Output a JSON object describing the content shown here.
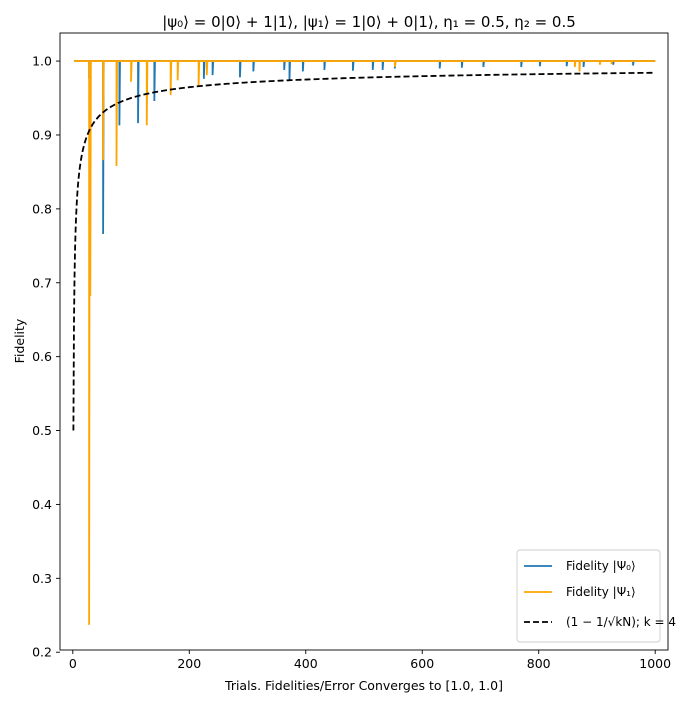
{
  "chart_data": {
    "type": "line",
    "title": "|ψ₀⟩ = 0|0⟩ + 1|1⟩, |ψ₁⟩ = 1|0⟩ + 0|1⟩, η₁ = 0.5, η₂ = 0.5",
    "xlabel": "Trials. Fidelities/Error Converges to [1.0, 1.0]",
    "ylabel": "Fidelity",
    "xlim": [
      -22,
      1022
    ],
    "ylim": [
      0.203,
      1.038
    ],
    "xticks": [
      0,
      200,
      400,
      600,
      800,
      1000
    ],
    "yticks": [
      0.2,
      0.3,
      0.4,
      0.5,
      0.6,
      0.7,
      0.8,
      0.9,
      1.0
    ],
    "xtick_labels": [
      "0",
      "200",
      "400",
      "600",
      "800",
      "1000"
    ],
    "ytick_labels": [
      "0.2",
      "0.3",
      "0.4",
      "0.5",
      "0.6",
      "0.7",
      "0.8",
      "0.9",
      "1.0"
    ],
    "legend_position": "lower-right",
    "series": [
      {
        "name": "Fidelity |Ψ₀⟩",
        "color": "#1f77b4",
        "baseline": 1.0,
        "x_range": [
          2,
          1000
        ],
        "dips": [
          {
            "x": 28,
            "y": 0.976
          },
          {
            "x": 52,
            "y": 0.766
          },
          {
            "x": 80,
            "y": 0.913
          },
          {
            "x": 112,
            "y": 0.916
          },
          {
            "x": 140,
            "y": 0.946
          },
          {
            "x": 225,
            "y": 0.976
          },
          {
            "x": 240,
            "y": 0.981
          },
          {
            "x": 287,
            "y": 0.978
          },
          {
            "x": 310,
            "y": 0.986
          },
          {
            "x": 363,
            "y": 0.988
          },
          {
            "x": 372,
            "y": 0.974
          },
          {
            "x": 395,
            "y": 0.986
          },
          {
            "x": 432,
            "y": 0.988
          },
          {
            "x": 481,
            "y": 0.987
          },
          {
            "x": 515,
            "y": 0.988
          },
          {
            "x": 532,
            "y": 0.988
          },
          {
            "x": 553,
            "y": 0.99
          },
          {
            "x": 630,
            "y": 0.99
          },
          {
            "x": 668,
            "y": 0.991
          },
          {
            "x": 705,
            "y": 0.992
          },
          {
            "x": 770,
            "y": 0.992
          },
          {
            "x": 802,
            "y": 0.993
          },
          {
            "x": 848,
            "y": 0.993
          },
          {
            "x": 877,
            "y": 0.992
          },
          {
            "x": 928,
            "y": 0.995
          },
          {
            "x": 962,
            "y": 0.994
          }
        ]
      },
      {
        "name": "Fidelity |Ψ₁⟩",
        "color": "#ffa500",
        "baseline": 1.0,
        "x_range": [
          2,
          1000
        ],
        "dips": [
          {
            "x": 28,
            "y": 0.237
          },
          {
            "x": 30,
            "y": 0.682
          },
          {
            "x": 52,
            "y": 0.866
          },
          {
            "x": 75,
            "y": 0.858
          },
          {
            "x": 100,
            "y": 0.972
          },
          {
            "x": 127,
            "y": 0.913
          },
          {
            "x": 168,
            "y": 0.954
          },
          {
            "x": 180,
            "y": 0.974
          },
          {
            "x": 216,
            "y": 0.967
          },
          {
            "x": 230,
            "y": 0.981
          },
          {
            "x": 553,
            "y": 0.992
          },
          {
            "x": 862,
            "y": 0.992
          },
          {
            "x": 870,
            "y": 0.986
          },
          {
            "x": 905,
            "y": 0.995
          },
          {
            "x": 925,
            "y": 0.996
          }
        ]
      },
      {
        "name": "(1 - 1/√(kN)); k = 4",
        "color": "#000000",
        "style": "dashed",
        "formula": "1 - 1/sqrt(4*N)",
        "k": 4,
        "x_range": [
          1,
          1000
        ]
      }
    ]
  },
  "legend": {
    "entries": [
      {
        "label": "Fidelity |Ψ₀⟩",
        "color": "#1f77b4",
        "style": "solid"
      },
      {
        "label": "Fidelity |Ψ₁⟩",
        "color": "#ffa500",
        "style": "solid"
      },
      {
        "label": "(1 − 1/√kN); k = 4",
        "color": "#000000",
        "style": "dashed"
      }
    ]
  }
}
